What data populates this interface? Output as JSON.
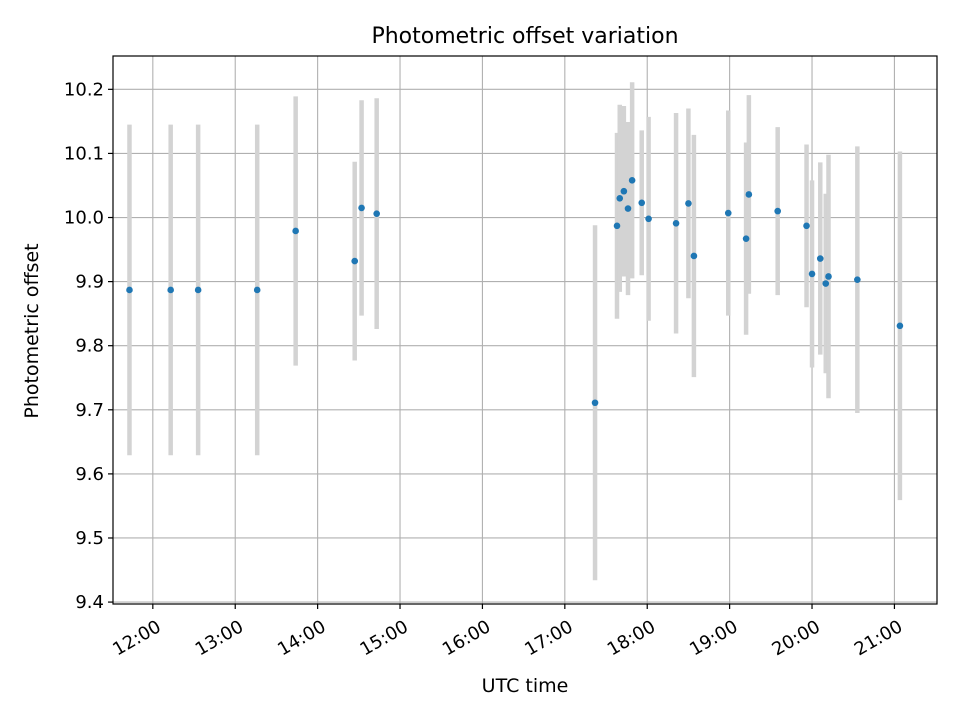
{
  "chart_data": {
    "type": "scatter",
    "title": "Photometric offset variation",
    "xlabel": "UTC time",
    "ylabel": "Photometric offset",
    "x_axis_kind": "time",
    "xlim": [
      "11:31",
      "21:31"
    ],
    "ylim": [
      9.397,
      10.252
    ],
    "grid": true,
    "x_ticks": [
      "12:00",
      "13:00",
      "14:00",
      "15:00",
      "16:00",
      "17:00",
      "18:00",
      "19:00",
      "20:00",
      "21:00"
    ],
    "y_ticks": [
      "9.4",
      "9.5",
      "9.6",
      "9.7",
      "9.8",
      "9.9",
      "10.0",
      "10.1",
      "10.2"
    ],
    "colors": {
      "point": "#1f77b4",
      "errorbar": "#d3d3d3",
      "grid": "#b0b0b0",
      "axes": "#000000"
    },
    "series": [
      {
        "points": [
          {
            "x": "11:43",
            "y": 9.887,
            "err": 0.258
          },
          {
            "x": "12:13",
            "y": 9.887,
            "err": 0.258
          },
          {
            "x": "12:33",
            "y": 9.887,
            "err": 0.258
          },
          {
            "x": "13:16",
            "y": 9.887,
            "err": 0.258
          },
          {
            "x": "13:44",
            "y": 9.979,
            "err": 0.21
          },
          {
            "x": "14:27",
            "y": 9.932,
            "err": 0.155
          },
          {
            "x": "14:32",
            "y": 10.015,
            "err": 0.168
          },
          {
            "x": "14:43",
            "y": 10.006,
            "err": 0.18
          },
          {
            "x": "17:22",
            "y": 9.711,
            "err": 0.277
          },
          {
            "x": "17:38",
            "y": 9.987,
            "err": 0.145
          },
          {
            "x": "17:40",
            "y": 10.03,
            "err": 0.146
          },
          {
            "x": "17:43",
            "y": 10.041,
            "err": 0.133
          },
          {
            "x": "17:46",
            "y": 10.014,
            "err": 0.135
          },
          {
            "x": "17:49",
            "y": 10.058,
            "err": 0.153
          },
          {
            "x": "17:56",
            "y": 10.023,
            "err": 0.113
          },
          {
            "x": "18:01",
            "y": 9.998,
            "err": 0.159
          },
          {
            "x": "18:21",
            "y": 9.991,
            "err": 0.172
          },
          {
            "x": "18:30",
            "y": 10.022,
            "err": 0.148
          },
          {
            "x": "18:34",
            "y": 9.94,
            "err": 0.189
          },
          {
            "x": "18:59",
            "y": 10.007,
            "err": 0.16
          },
          {
            "x": "19:12",
            "y": 9.967,
            "err": 0.15
          },
          {
            "x": "19:14",
            "y": 10.036,
            "err": 0.155
          },
          {
            "x": "19:35",
            "y": 10.01,
            "err": 0.131
          },
          {
            "x": "19:56",
            "y": 9.987,
            "err": 0.127
          },
          {
            "x": "20:00",
            "y": 9.912,
            "err": 0.146
          },
          {
            "x": "20:06",
            "y": 9.936,
            "err": 0.15
          },
          {
            "x": "20:10",
            "y": 9.897,
            "err": 0.14
          },
          {
            "x": "20:12",
            "y": 9.908,
            "err": 0.19
          },
          {
            "x": "20:33",
            "y": 9.903,
            "err": 0.208
          },
          {
            "x": "21:04",
            "y": 9.831,
            "err": 0.272
          }
        ]
      }
    ]
  }
}
